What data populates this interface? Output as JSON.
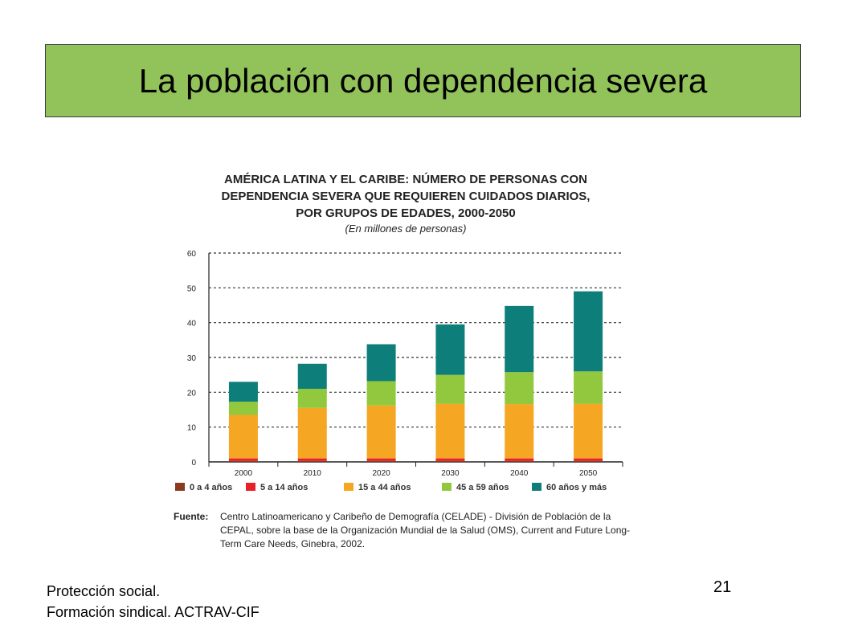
{
  "slide": {
    "title": "La población con dependencia severa",
    "footer_line1": "Protección social.",
    "footer_line2": "Formación sindical.  ACTRAV-CIF",
    "page_number": "21"
  },
  "figure": {
    "title_line1": "AMÉRICA LATINA Y EL CARIBE: NÚMERO DE PERSONAS CON",
    "title_line2": "DEPENDENCIA SEVERA QUE REQUIEREN CUIDADOS DIARIOS,",
    "title_line3": "POR GRUPOS DE EDADES, 2000-2050",
    "subtitle": "(En millones de personas)",
    "source_label": "Fuente:",
    "source_text": "Centro Latinoamericano y Caribeño de Demografía (CELADE) - División de Población de la CEPAL, sobre la base de la Organización Mundial de la Salud (OMS), Current and Future Long-Term Care Needs, Ginebra, 2002."
  },
  "chart_data": {
    "type": "bar",
    "stacked": true,
    "categories": [
      "2000",
      "2010",
      "2020",
      "2030",
      "2040",
      "2050"
    ],
    "ylim": [
      0,
      60
    ],
    "yticks": [
      0,
      10,
      20,
      30,
      40,
      50,
      60
    ],
    "grid": true,
    "legend_position": "bottom",
    "series": [
      {
        "name": "0 a 4 años",
        "color": "#8b3a1e",
        "values": [
          0.3,
          0.3,
          0.3,
          0.3,
          0.3,
          0.3
        ]
      },
      {
        "name": "5 a 14 años",
        "color": "#e8202a",
        "values": [
          0.7,
          0.7,
          0.7,
          0.7,
          0.7,
          0.7
        ]
      },
      {
        "name": "15 a 44 años",
        "color": "#f5a623",
        "values": [
          12.5,
          14.5,
          15.2,
          15.7,
          15.6,
          15.7
        ]
      },
      {
        "name": "45 a 59 años",
        "color": "#92c83e",
        "values": [
          3.8,
          5.5,
          7.0,
          8.3,
          9.2,
          9.3
        ]
      },
      {
        "name": "60 años y más",
        "color": "#0e7e7a",
        "values": [
          5.7,
          7.2,
          10.6,
          14.5,
          19.0,
          23.0
        ]
      }
    ]
  }
}
